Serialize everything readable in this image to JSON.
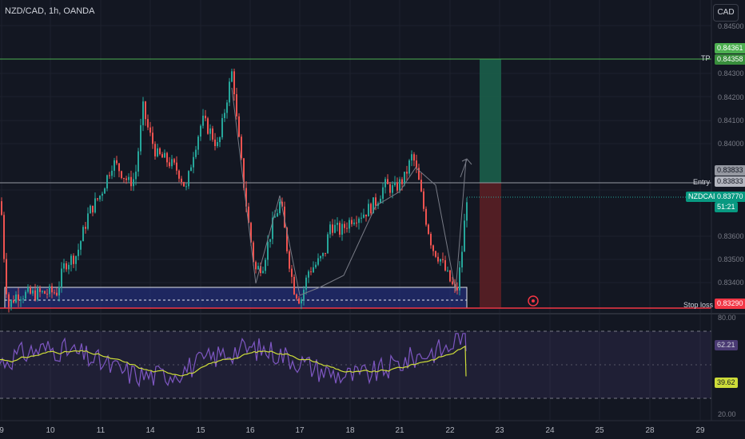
{
  "header": {
    "symbol": "NZD/CAD, 1h, OANDA",
    "currency": "CAD"
  },
  "price_axis": {
    "ticks": [
      "0.84500",
      "0.84300",
      "0.84200",
      "0.84100",
      "0.84000",
      "0.83600",
      "0.83500",
      "0.83400"
    ],
    "tp_price": "0.84361",
    "tp_price2": "0.84358",
    "entry_price": "0.83833",
    "entry_price2": "0.83833",
    "last_price": "0.83770",
    "countdown": "51:21",
    "sl_price": "0.83290",
    "symbol_badge": "NZDCAD"
  },
  "labels": {
    "tp": "TP",
    "entry": "Entry",
    "stop_loss": "Stop loss"
  },
  "rsi": {
    "upper": "80.00",
    "lower": "20.00",
    "rsi_value": "62.21",
    "ma_value": "39.62"
  },
  "time_axis": [
    "9",
    "10",
    "11",
    "14",
    "15",
    "16",
    "17",
    "18",
    "21",
    "22",
    "23",
    "24",
    "25",
    "28",
    "29"
  ],
  "colors": {
    "background": "#131722",
    "up": "#26a69a",
    "down": "#ef5350",
    "tp_line": "#4caf50",
    "sl_line": "#f23645",
    "rsi": "#7e57c2",
    "rsi_ma": "#cddc39"
  },
  "chart_data": {
    "type": "candlestick",
    "series": [
      {
        "name": "NZDCAD",
        "points": [
          {
            "t": 0,
            "c": 0.8375
          },
          {
            "t": 6,
            "c": 0.834
          },
          {
            "t": 10,
            "c": 0.833
          },
          {
            "t": 20,
            "c": 0.8335
          },
          {
            "t": 40,
            "c": 0.8335
          },
          {
            "t": 70,
            "c": 0.8336
          },
          {
            "t": 80,
            "c": 0.8348
          },
          {
            "t": 95,
            "c": 0.8352
          },
          {
            "t": 110,
            "c": 0.837
          },
          {
            "t": 125,
            "c": 0.8378
          },
          {
            "t": 140,
            "c": 0.8392
          },
          {
            "t": 150,
            "c": 0.8388
          },
          {
            "t": 160,
            "c": 0.8383
          },
          {
            "t": 168,
            "c": 0.8385
          },
          {
            "t": 178,
            "c": 0.8415
          },
          {
            "t": 185,
            "c": 0.8405
          },
          {
            "t": 195,
            "c": 0.8395
          },
          {
            "t": 210,
            "c": 0.8392
          },
          {
            "t": 222,
            "c": 0.8388
          },
          {
            "t": 232,
            "c": 0.838
          },
          {
            "t": 240,
            "c": 0.8395
          },
          {
            "t": 252,
            "c": 0.841
          },
          {
            "t": 262,
            "c": 0.8405
          },
          {
            "t": 272,
            "c": 0.8398
          },
          {
            "t": 282,
            "c": 0.8418
          },
          {
            "t": 290,
            "c": 0.8432
          },
          {
            "t": 295,
            "c": 0.841
          },
          {
            "t": 302,
            "c": 0.8388
          },
          {
            "t": 310,
            "c": 0.8365
          },
          {
            "t": 318,
            "c": 0.8345
          },
          {
            "t": 328,
            "c": 0.8348
          },
          {
            "t": 340,
            "c": 0.8365
          },
          {
            "t": 350,
            "c": 0.8375
          },
          {
            "t": 358,
            "c": 0.8355
          },
          {
            "t": 366,
            "c": 0.8338
          },
          {
            "t": 375,
            "c": 0.8332
          },
          {
            "t": 385,
            "c": 0.8345
          },
          {
            "t": 395,
            "c": 0.8348
          },
          {
            "t": 405,
            "c": 0.8352
          },
          {
            "t": 412,
            "c": 0.8365
          },
          {
            "t": 425,
            "c": 0.8362
          },
          {
            "t": 440,
            "c": 0.8368
          },
          {
            "t": 455,
            "c": 0.837
          },
          {
            "t": 470,
            "c": 0.8375
          },
          {
            "t": 480,
            "c": 0.8382
          },
          {
            "t": 492,
            "c": 0.838
          },
          {
            "t": 505,
            "c": 0.8385
          },
          {
            "t": 515,
            "c": 0.8395
          },
          {
            "t": 522,
            "c": 0.8385
          },
          {
            "t": 530,
            "c": 0.837
          },
          {
            "t": 540,
            "c": 0.8355
          },
          {
            "t": 550,
            "c": 0.835
          },
          {
            "t": 560,
            "c": 0.8342
          },
          {
            "t": 570,
            "c": 0.8335
          },
          {
            "t": 576,
            "c": 0.835
          },
          {
            "t": 583,
            "c": 0.8377
          }
        ]
      }
    ],
    "levels": {
      "tp": 0.84361,
      "entry": 0.83833,
      "stop_loss": 0.8329
    },
    "rsi_range": [
      20,
      80
    ]
  }
}
